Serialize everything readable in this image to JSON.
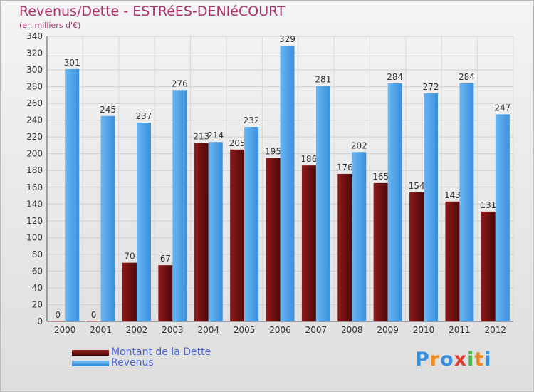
{
  "header": {
    "title": "Revenus/Dette - ESTRéES-DENIéCOURT",
    "subtitle": "(en milliers d'€)"
  },
  "legend": [
    {
      "label": "Montant de la Dette",
      "color": "#6b0e0e"
    },
    {
      "label": "Revenus",
      "color": "#4a9fe6"
    }
  ],
  "logo": {
    "letters": [
      "P",
      "r",
      "o",
      "x",
      "i",
      "t",
      "i"
    ],
    "colors": [
      "#3a8fdc",
      "#f08a1c",
      "#3a8fdc",
      "#e23b2e",
      "#4ab34a",
      "#f08a1c",
      "#3a8fdc"
    ]
  },
  "chart_data": {
    "type": "bar",
    "categories": [
      "2000",
      "2001",
      "2002",
      "2003",
      "2004",
      "2005",
      "2006",
      "2007",
      "2008",
      "2009",
      "2010",
      "2011",
      "2012"
    ],
    "series": [
      {
        "name": "Montant de la Dette",
        "color": "#6b0e0e",
        "values": [
          0,
          0,
          70,
          67,
          213,
          205,
          195,
          186,
          176,
          165,
          154,
          143,
          131
        ]
      },
      {
        "name": "Revenus",
        "color": "#4a9fe6",
        "values": [
          301,
          245,
          237,
          276,
          214,
          232,
          329,
          281,
          202,
          284,
          272,
          284,
          247
        ]
      }
    ],
    "ylim": [
      0,
      340
    ],
    "ytick_step": 20,
    "grid": true,
    "legend_position": "bottom-left",
    "data_labels": true
  }
}
